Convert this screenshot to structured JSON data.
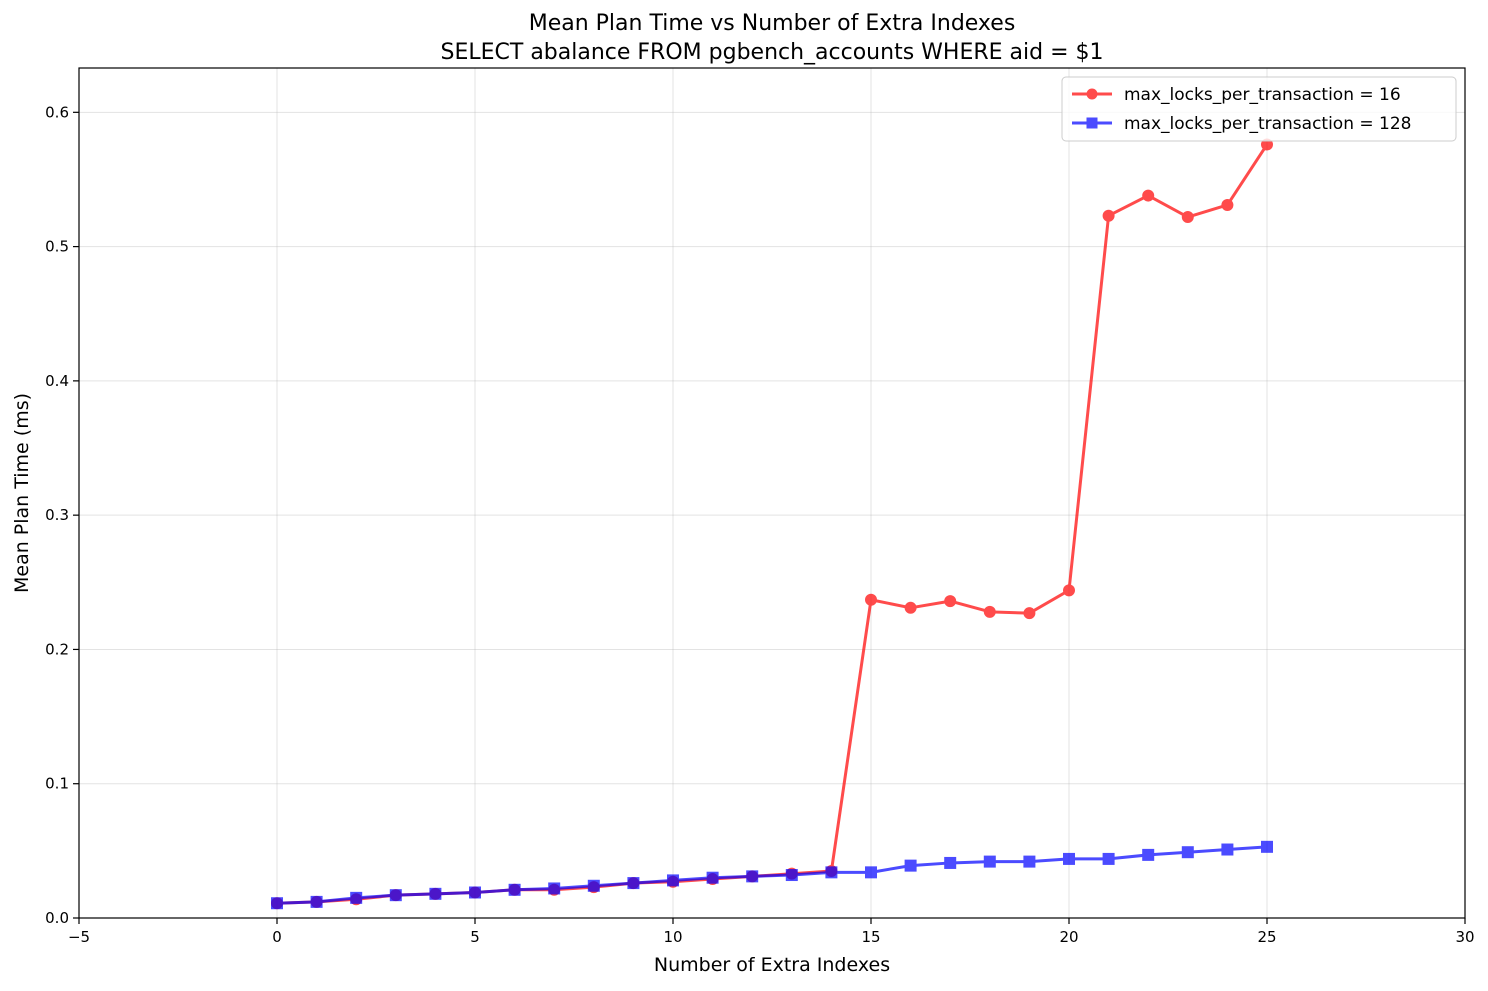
{
  "chart_data": {
    "type": "line",
    "title": "Mean Plan Time vs Number of Extra Indexes",
    "subtitle": "SELECT abalance FROM pgbench_accounts WHERE aid = $1",
    "xlabel": "Number of Extra Indexes",
    "ylabel": "Mean Plan Time (ms)",
    "xlim": [
      -5,
      30
    ],
    "ylim": [
      0,
      0.633
    ],
    "xticks": [
      -5,
      0,
      5,
      10,
      15,
      20,
      25,
      30
    ],
    "xtick_labels": [
      "−5",
      "0",
      "5",
      "10",
      "15",
      "20",
      "25",
      "30"
    ],
    "yticks": [
      0.0,
      0.1,
      0.2,
      0.3,
      0.4,
      0.5,
      0.6
    ],
    "ytick_labels": [
      "0.0",
      "0.1",
      "0.2",
      "0.3",
      "0.4",
      "0.5",
      "0.6"
    ],
    "grid": true,
    "legend_position": "top-right",
    "x": [
      0,
      1,
      2,
      3,
      4,
      5,
      6,
      7,
      8,
      9,
      10,
      11,
      12,
      13,
      14,
      15,
      16,
      17,
      18,
      19,
      20,
      21,
      22,
      23,
      24,
      25
    ],
    "series": [
      {
        "name": "max_locks_per_transaction = 16",
        "color": "#ff0000",
        "marker": "circle",
        "values": [
          0.011,
          0.012,
          0.014,
          0.017,
          0.018,
          0.019,
          0.021,
          0.021,
          0.023,
          0.026,
          0.027,
          0.029,
          0.031,
          0.033,
          0.035,
          0.237,
          0.231,
          0.236,
          0.228,
          0.227,
          0.244,
          0.523,
          0.538,
          0.522,
          0.531,
          0.576
        ]
      },
      {
        "name": "max_locks_per_transaction = 128",
        "color": "#0000ff",
        "marker": "square",
        "values": [
          0.011,
          0.012,
          0.015,
          0.017,
          0.018,
          0.019,
          0.021,
          0.022,
          0.024,
          0.026,
          0.028,
          0.03,
          0.031,
          0.032,
          0.034,
          0.034,
          0.039,
          0.041,
          0.042,
          0.042,
          0.044,
          0.044,
          0.047,
          0.049,
          0.051,
          0.053
        ]
      }
    ]
  }
}
